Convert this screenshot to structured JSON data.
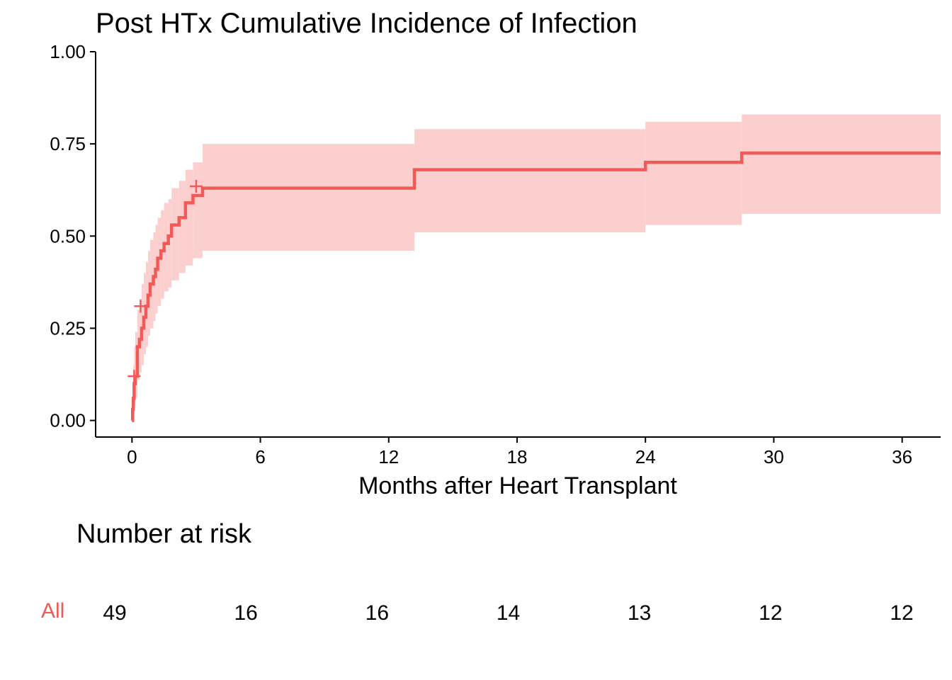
{
  "chart_data": {
    "type": "line",
    "title": "Post HTx Cumulative Incidence of Infection",
    "xlabel": "Months after Heart Transplant",
    "ylabel": "",
    "xlim": [
      -1.7,
      37.8
    ],
    "ylim": [
      -0.045,
      1.0
    ],
    "x_ticks": [
      0,
      6,
      12,
      18,
      24,
      30,
      36
    ],
    "x_tick_labels": [
      "0",
      "6",
      "12",
      "18",
      "24",
      "30",
      "36"
    ],
    "y_ticks": [
      0,
      0.25,
      0.5,
      0.75,
      1.0
    ],
    "y_tick_labels": [
      "0.00",
      "0.25",
      "0.50",
      "0.75",
      "1.00"
    ],
    "grid": false,
    "legend": "none",
    "colors": {
      "line": "#f25a57",
      "band": "#fccfcf",
      "axis": "#000000"
    },
    "series": [
      {
        "steps": [
          {
            "x": 0.0,
            "y": 0.0,
            "lo": 0.0,
            "hi": 0.0
          },
          {
            "x": 0.03,
            "y": 0.03,
            "lo": 0.005,
            "hi": 0.09
          },
          {
            "x": 0.06,
            "y": 0.06,
            "lo": 0.015,
            "hi": 0.15
          },
          {
            "x": 0.1,
            "y": 0.1,
            "lo": 0.04,
            "hi": 0.2
          },
          {
            "x": 0.15,
            "y": 0.12,
            "lo": 0.06,
            "hi": 0.24
          },
          {
            "x": 0.25,
            "y": 0.2,
            "lo": 0.11,
            "hi": 0.3
          },
          {
            "x": 0.35,
            "y": 0.22,
            "lo": 0.13,
            "hi": 0.33
          },
          {
            "x": 0.45,
            "y": 0.25,
            "lo": 0.15,
            "hi": 0.37
          },
          {
            "x": 0.55,
            "y": 0.28,
            "lo": 0.18,
            "hi": 0.4
          },
          {
            "x": 0.65,
            "y": 0.31,
            "lo": 0.2,
            "hi": 0.43
          },
          {
            "x": 0.75,
            "y": 0.34,
            "lo": 0.23,
            "hi": 0.46
          },
          {
            "x": 0.85,
            "y": 0.37,
            "lo": 0.25,
            "hi": 0.49
          },
          {
            "x": 1.0,
            "y": 0.39,
            "lo": 0.27,
            "hi": 0.51
          },
          {
            "x": 1.1,
            "y": 0.41,
            "lo": 0.29,
            "hi": 0.53
          },
          {
            "x": 1.2,
            "y": 0.44,
            "lo": 0.31,
            "hi": 0.55
          },
          {
            "x": 1.35,
            "y": 0.46,
            "lo": 0.33,
            "hi": 0.57
          },
          {
            "x": 1.5,
            "y": 0.48,
            "lo": 0.35,
            "hi": 0.59
          },
          {
            "x": 1.7,
            "y": 0.5,
            "lo": 0.36,
            "hi": 0.6
          },
          {
            "x": 1.85,
            "y": 0.53,
            "lo": 0.38,
            "hi": 0.63
          },
          {
            "x": 2.2,
            "y": 0.55,
            "lo": 0.4,
            "hi": 0.65
          },
          {
            "x": 2.5,
            "y": 0.59,
            "lo": 0.42,
            "hi": 0.68
          },
          {
            "x": 2.85,
            "y": 0.61,
            "lo": 0.44,
            "hi": 0.7
          },
          {
            "x": 3.3,
            "y": 0.63,
            "lo": 0.46,
            "hi": 0.75
          },
          {
            "x": 13.2,
            "y": 0.68,
            "lo": 0.51,
            "hi": 0.79
          },
          {
            "x": 24.0,
            "y": 0.7,
            "lo": 0.53,
            "hi": 0.81
          },
          {
            "x": 28.5,
            "y": 0.725,
            "lo": 0.56,
            "hi": 0.83
          }
        ],
        "x_end": 37.8,
        "censored": [
          {
            "x": 0.1,
            "y": 0.12
          },
          {
            "x": 0.4,
            "y": 0.31
          },
          {
            "x": 3.0,
            "y": 0.635
          }
        ]
      }
    ],
    "risk_table": {
      "title": "Number at risk",
      "strata": "All",
      "times": [
        0,
        6,
        12,
        18,
        24,
        30,
        36
      ],
      "values": [
        "49",
        "16",
        "16",
        "14",
        "13",
        "12",
        "12"
      ]
    }
  }
}
